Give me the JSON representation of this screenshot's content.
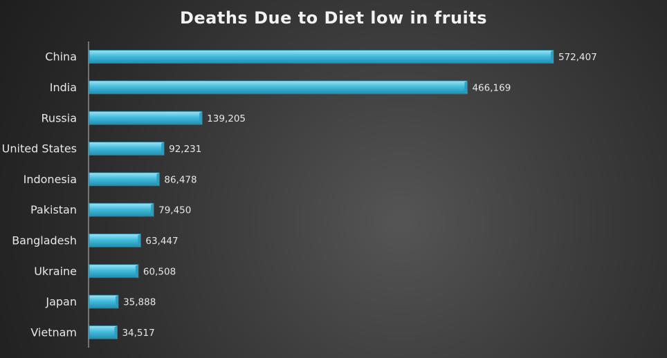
{
  "chart_data": {
    "type": "bar",
    "orientation": "horizontal",
    "title": "Deaths Due to Diet low in fruits",
    "categories": [
      "China",
      "India",
      "Russia",
      "United States",
      "Indonesia",
      "Pakistan",
      "Bangladesh",
      "Ukraine",
      "Japan",
      "Vietnam"
    ],
    "values": [
      572407,
      466169,
      139205,
      92231,
      86478,
      79450,
      63447,
      60508,
      35888,
      34517
    ],
    "value_labels": [
      "572,407",
      "466,169",
      "139,205",
      "92,231",
      "86,478",
      "79,450",
      "63,447",
      "60,508",
      "35,888",
      "34,517"
    ],
    "xlim": [
      0,
      572407
    ],
    "grid": false,
    "legend": "none",
    "bar_color": "#3fb6d6"
  }
}
